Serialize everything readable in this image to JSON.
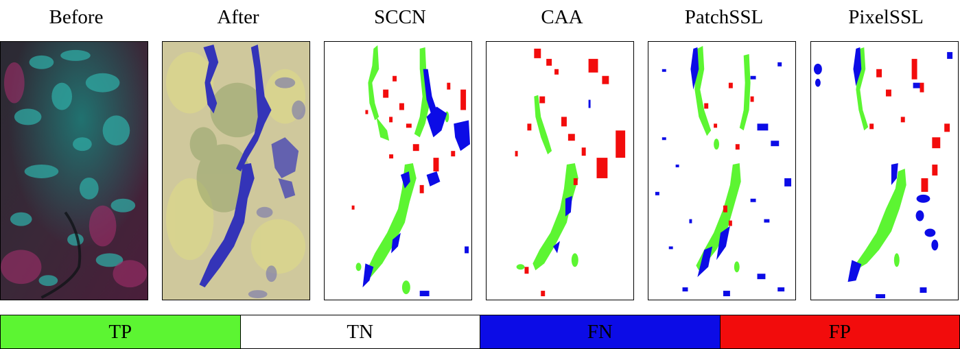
{
  "panels": [
    {
      "title": "Before",
      "icon": "satellite-image-before"
    },
    {
      "title": "After",
      "icon": "satellite-image-after"
    },
    {
      "title": "SCCN",
      "icon": "change-map-sccn"
    },
    {
      "title": "CAA",
      "icon": "change-map-caa"
    },
    {
      "title": "PatchSSL",
      "icon": "change-map-patchssl"
    },
    {
      "title": "PixelSSL",
      "icon": "change-map-pixelssl"
    }
  ],
  "legend": [
    {
      "label": "TP",
      "color": "#5cf532"
    },
    {
      "label": "TN",
      "color": "#ffffff"
    },
    {
      "label": "FN",
      "color": "#0c0ce6"
    },
    {
      "label": "FP",
      "color": "#f20c0c"
    }
  ]
}
